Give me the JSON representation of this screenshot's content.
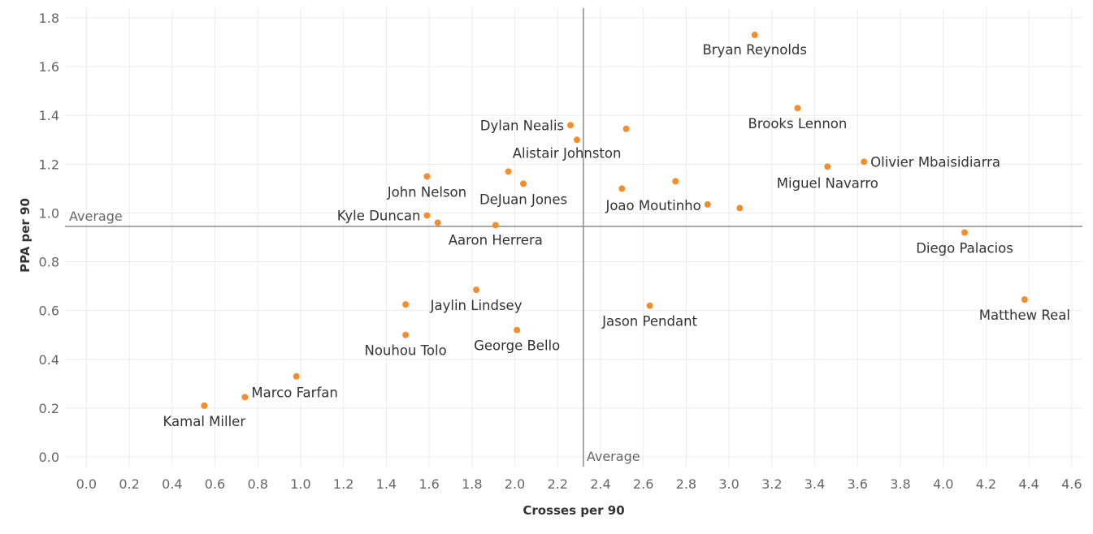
{
  "chart_data": {
    "type": "scatter",
    "xlabel": "Crosses per 90",
    "ylabel": "PPA per 90",
    "xlim": [
      -0.1,
      4.65
    ],
    "ylim": [
      -0.04,
      1.84
    ],
    "x_ticks": [
      "0.0",
      "0.2",
      "0.4",
      "0.6",
      "0.8",
      "1.0",
      "1.2",
      "1.4",
      "1.6",
      "1.8",
      "2.0",
      "2.2",
      "2.4",
      "2.6",
      "2.8",
      "3.0",
      "3.2",
      "3.4",
      "3.6",
      "3.8",
      "4.0",
      "4.2",
      "4.4",
      "4.6"
    ],
    "y_ticks": [
      "0.0",
      "0.2",
      "0.4",
      "0.6",
      "0.8",
      "1.0",
      "1.2",
      "1.4",
      "1.6",
      "1.8"
    ],
    "grid": true,
    "marker_color": "#f28e2b",
    "reference_lines": [
      {
        "axis": "x",
        "value": 2.32,
        "label": "Average"
      },
      {
        "axis": "y",
        "value": 0.945,
        "label": "Average"
      }
    ],
    "points": [
      {
        "label": "Bryan Reynolds",
        "x": 3.12,
        "y": 1.73
      },
      {
        "label": "Brooks Lennon",
        "x": 3.32,
        "y": 1.43
      },
      {
        "label": "Dylan Nealis",
        "x": 2.26,
        "y": 1.36
      },
      {
        "label": "",
        "x": 2.52,
        "y": 1.345
      },
      {
        "label": "",
        "x": 2.29,
        "y": 1.3
      },
      {
        "label": "Alistair Johnston",
        "x": 1.97,
        "y": 1.17
      },
      {
        "label": "Olivier Mbaisidiarra",
        "x": 3.63,
        "y": 1.21
      },
      {
        "label": "Miguel Navarro",
        "x": 3.46,
        "y": 1.19
      },
      {
        "label": "John Nelson",
        "x": 1.59,
        "y": 1.15
      },
      {
        "label": "DeJuan Jones",
        "x": 2.04,
        "y": 1.12
      },
      {
        "label": "",
        "x": 2.75,
        "y": 1.13
      },
      {
        "label": "",
        "x": 2.5,
        "y": 1.1
      },
      {
        "label": "Joao Moutinho",
        "x": 2.9,
        "y": 1.035
      },
      {
        "label": "",
        "x": 3.05,
        "y": 1.02
      },
      {
        "label": "Kyle Duncan",
        "x": 1.59,
        "y": 0.99
      },
      {
        "label": "",
        "x": 1.64,
        "y": 0.96
      },
      {
        "label": "Aaron Herrera",
        "x": 1.91,
        "y": 0.95
      },
      {
        "label": "Diego Palacios",
        "x": 4.1,
        "y": 0.92
      },
      {
        "label": "Jaylin Lindsey",
        "x": 1.82,
        "y": 0.685
      },
      {
        "label": "Matthew Real",
        "x": 4.38,
        "y": 0.645
      },
      {
        "label": "",
        "x": 1.49,
        "y": 0.625
      },
      {
        "label": "Jason Pendant",
        "x": 2.63,
        "y": 0.62
      },
      {
        "label": "George Bello",
        "x": 2.01,
        "y": 0.52
      },
      {
        "label": "Nouhou Tolo",
        "x": 1.49,
        "y": 0.5
      },
      {
        "label": "",
        "x": 0.98,
        "y": 0.33
      },
      {
        "label": "Marco Farfan",
        "x": 0.74,
        "y": 0.245
      },
      {
        "label": "Kamal Miller",
        "x": 0.55,
        "y": 0.21
      }
    ]
  }
}
